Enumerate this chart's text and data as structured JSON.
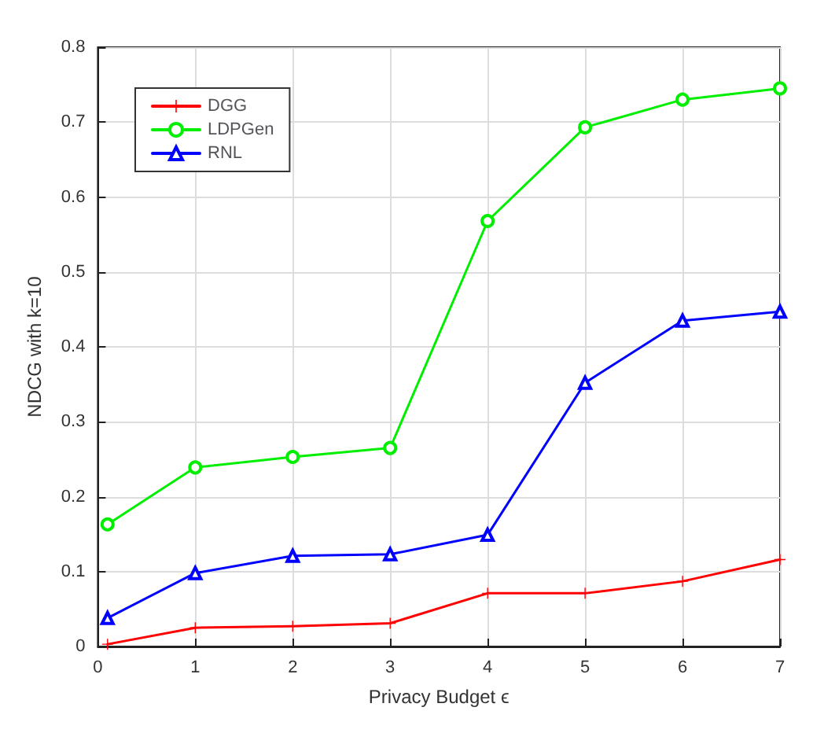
{
  "chart_data": {
    "type": "line",
    "xlabel": "Privacy Budget ϵ",
    "ylabel": "NDCG with k=10",
    "x": [
      0.1,
      1,
      2,
      3,
      4,
      5,
      6,
      7
    ],
    "series": [
      {
        "name": "DGG",
        "color": "#ff0000",
        "marker": "cross",
        "values": [
          0.003,
          0.025,
          0.027,
          0.031,
          0.071,
          0.071,
          0.087,
          0.116
        ]
      },
      {
        "name": "LDPGen",
        "color": "#00ee00",
        "marker": "circle",
        "values": [
          0.163,
          0.239,
          0.253,
          0.265,
          0.568,
          0.693,
          0.73,
          0.745
        ]
      },
      {
        "name": "RNL",
        "color": "#0000ff",
        "marker": "triangle",
        "values": [
          0.038,
          0.098,
          0.121,
          0.123,
          0.149,
          0.352,
          0.435,
          0.447
        ]
      }
    ],
    "xlim": [
      0,
      7
    ],
    "xticks": [
      0,
      1,
      2,
      3,
      4,
      5,
      6,
      7
    ],
    "ylim": [
      0,
      0.8
    ],
    "yticks": [
      0,
      0.1,
      0.2,
      0.3,
      0.4,
      0.5,
      0.6,
      0.7,
      0.8
    ],
    "grid": true,
    "legend": "top left",
    "line_style": "solid"
  }
}
